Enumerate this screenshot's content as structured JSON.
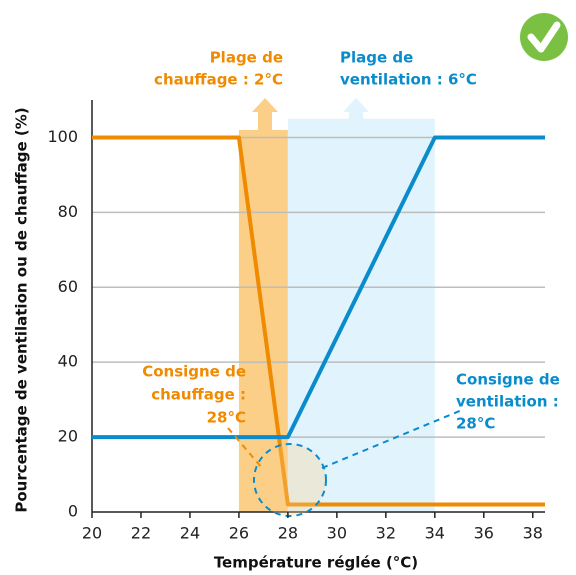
{
  "chart_data": {
    "type": "line",
    "x_label": "Température réglée (°C)",
    "y_label": "Pourcentage de ventilation ou de  chauffage (%)",
    "series": [
      {
        "name": "chauffage",
        "color": "#f08a00",
        "x": [
          20,
          26,
          28,
          38.5
        ],
        "values": [
          100,
          100,
          2,
          2
        ]
      },
      {
        "name": "ventilation",
        "color": "#0a8ccc",
        "x": [
          20,
          28,
          34,
          38.5
        ],
        "values": [
          20,
          20,
          100,
          100
        ]
      }
    ],
    "bands": [
      {
        "x": [
          26,
          28
        ],
        "top": 102,
        "color": "#fbcf88"
      },
      {
        "x": [
          28,
          34
        ],
        "top": 105,
        "color": "#e1f3fc"
      }
    ],
    "annotations": [
      {
        "lines": [
          "Plage de",
          "chauffage : 2°C"
        ],
        "color": "#f08a00"
      },
      {
        "lines": [
          "Plage de",
          "ventilation : 6°C"
        ],
        "color": "#0a8ccc"
      },
      {
        "lines": [
          "Consigne de",
          "chauffage :",
          "28°C"
        ],
        "color": "#f08a00"
      },
      {
        "lines": [
          "Consigne de",
          "ventilation :",
          "28°C"
        ],
        "color": "#0a8ccc"
      }
    ],
    "xlim": [
      20,
      38.5
    ],
    "ylim": [
      0,
      110
    ],
    "xticks": [
      20,
      22,
      24,
      26,
      28,
      30,
      32,
      34,
      36,
      38
    ],
    "yticks": [
      0,
      20,
      40,
      60,
      80,
      100
    ],
    "grid": true
  }
}
